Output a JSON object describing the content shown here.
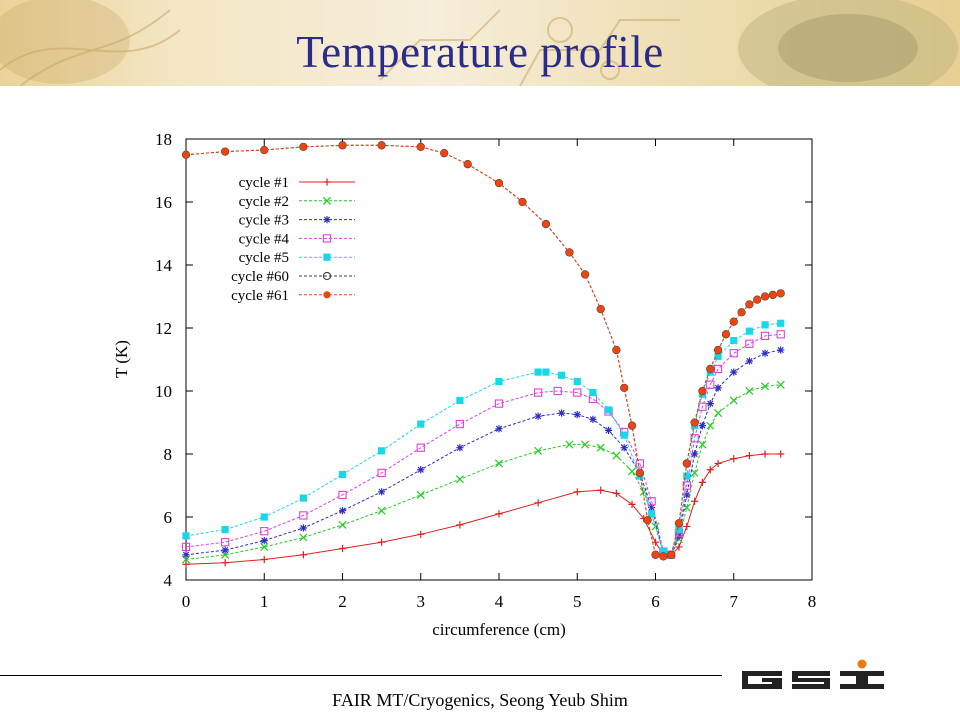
{
  "slide": {
    "title": "Temperature profile",
    "footer": "FAIR MT/Cryogenics,   Seong Yeub Shim",
    "logo_text": "GSI",
    "logo_color": "#222222",
    "logo_accent": "#e87a10"
  },
  "chart_data": {
    "type": "line",
    "title": "",
    "xlabel": "circumference (cm)",
    "ylabel": "T (K)",
    "xlim": [
      0,
      8
    ],
    "ylim": [
      4,
      18
    ],
    "xticks": [
      0,
      1,
      2,
      3,
      4,
      5,
      6,
      7,
      8
    ],
    "yticks": [
      4,
      6,
      8,
      10,
      12,
      14,
      16,
      18
    ],
    "grid": false,
    "legend_position": "top-left",
    "series": [
      {
        "name": "cycle #1",
        "color": "#e02020",
        "marker": "plus",
        "x": [
          0,
          0.5,
          1,
          1.5,
          2,
          2.5,
          3,
          3.5,
          4,
          4.5,
          5,
          5.3,
          5.5,
          5.7,
          5.85,
          6.0,
          6.1,
          6.2,
          6.3,
          6.4,
          6.5,
          6.6,
          6.7,
          6.8,
          7.0,
          7.2,
          7.4,
          7.6
        ],
        "y": [
          4.5,
          4.55,
          4.65,
          4.8,
          5.0,
          5.2,
          5.45,
          5.75,
          6.1,
          6.45,
          6.8,
          6.85,
          6.75,
          6.4,
          5.95,
          5.2,
          4.8,
          4.8,
          5.05,
          5.7,
          6.5,
          7.1,
          7.5,
          7.7,
          7.85,
          7.95,
          8.0,
          8.0
        ]
      },
      {
        "name": "cycle #2",
        "color": "#22cc22",
        "marker": "x",
        "x": [
          0,
          0.5,
          1,
          1.5,
          2,
          2.5,
          3,
          3.5,
          4,
          4.5,
          4.9,
          5.1,
          5.3,
          5.5,
          5.7,
          5.85,
          6.0,
          6.1,
          6.2,
          6.3,
          6.4,
          6.5,
          6.6,
          6.7,
          6.8,
          7.0,
          7.2,
          7.4,
          7.6
        ],
        "y": [
          4.65,
          4.8,
          5.05,
          5.35,
          5.75,
          6.2,
          6.7,
          7.2,
          7.7,
          8.1,
          8.3,
          8.3,
          8.2,
          7.95,
          7.45,
          6.8,
          5.7,
          4.85,
          4.8,
          5.3,
          6.3,
          7.4,
          8.3,
          8.9,
          9.3,
          9.7,
          10.0,
          10.15,
          10.2
        ]
      },
      {
        "name": "cycle #3",
        "color": "#2d2dc8",
        "marker": "star",
        "x": [
          0,
          0.5,
          1,
          1.5,
          2,
          2.5,
          3,
          3.5,
          4,
          4.5,
          4.8,
          5.0,
          5.2,
          5.4,
          5.6,
          5.8,
          5.95,
          6.1,
          6.2,
          6.3,
          6.4,
          6.5,
          6.6,
          6.7,
          6.8,
          7.0,
          7.2,
          7.4,
          7.6
        ],
        "y": [
          4.8,
          4.95,
          5.25,
          5.65,
          6.2,
          6.8,
          7.5,
          8.2,
          8.8,
          9.2,
          9.3,
          9.25,
          9.1,
          8.75,
          8.2,
          7.4,
          6.3,
          4.9,
          4.8,
          5.4,
          6.7,
          8.0,
          8.9,
          9.6,
          10.1,
          10.6,
          10.95,
          11.2,
          11.3
        ]
      },
      {
        "name": "cycle #4",
        "color": "#e040e0",
        "marker": "square-open",
        "x": [
          0,
          0.5,
          1,
          1.5,
          2,
          2.5,
          3,
          3.5,
          4,
          4.5,
          4.75,
          5.0,
          5.2,
          5.4,
          5.6,
          5.8,
          5.95,
          6.1,
          6.2,
          6.3,
          6.4,
          6.5,
          6.6,
          6.7,
          6.8,
          7.0,
          7.2,
          7.4,
          7.6
        ],
        "y": [
          5.05,
          5.2,
          5.55,
          6.05,
          6.7,
          7.4,
          8.2,
          8.95,
          9.6,
          9.95,
          10.0,
          9.95,
          9.75,
          9.35,
          8.7,
          7.7,
          6.5,
          4.9,
          4.8,
          5.5,
          7.0,
          8.5,
          9.5,
          10.2,
          10.7,
          11.2,
          11.5,
          11.75,
          11.8
        ]
      },
      {
        "name": "cycle #5",
        "color": "#18d8e8",
        "marker": "square-filled",
        "x": [
          0,
          0.5,
          1,
          1.5,
          2,
          2.5,
          3,
          3.5,
          4,
          4.5,
          4.6,
          4.8,
          5.0,
          5.2,
          5.4,
          5.6,
          5.8,
          5.95,
          6.1,
          6.2,
          6.3,
          6.4,
          6.5,
          6.6,
          6.7,
          6.8,
          7.0,
          7.2,
          7.4,
          7.6
        ],
        "y": [
          5.4,
          5.6,
          6.0,
          6.6,
          7.35,
          8.1,
          8.95,
          9.7,
          10.3,
          10.6,
          10.6,
          10.5,
          10.3,
          9.95,
          9.4,
          8.6,
          7.3,
          6.1,
          4.9,
          4.8,
          5.6,
          7.3,
          8.9,
          9.9,
          10.6,
          11.1,
          11.6,
          11.9,
          12.1,
          12.15
        ]
      },
      {
        "name": "cycle #60",
        "color": "#404040",
        "marker": "circle-open",
        "x": [
          0,
          0.5,
          1,
          1.5,
          2,
          2.5,
          3,
          3.3,
          3.6,
          4.0,
          4.3,
          4.6,
          4.9,
          5.1,
          5.3,
          5.5,
          5.6,
          5.7,
          5.8,
          5.9,
          6.0,
          6.1,
          6.2,
          6.3,
          6.4,
          6.5,
          6.6,
          6.7,
          6.8,
          6.9,
          7.0,
          7.1,
          7.2,
          7.3,
          7.4,
          7.5,
          7.6
        ],
        "y": [
          17.5,
          17.6,
          17.65,
          17.75,
          17.8,
          17.8,
          17.75,
          17.55,
          17.2,
          16.6,
          16.0,
          15.3,
          14.4,
          13.7,
          12.6,
          11.3,
          10.1,
          8.9,
          7.4,
          5.9,
          4.8,
          4.75,
          4.8,
          5.8,
          7.7,
          9.0,
          10.0,
          10.7,
          11.3,
          11.8,
          12.2,
          12.5,
          12.75,
          12.9,
          13.0,
          13.05,
          13.1
        ]
      },
      {
        "name": "cycle #61",
        "color": "#ee4510",
        "marker": "circle-filled",
        "x": [
          0,
          0.5,
          1,
          1.5,
          2,
          2.5,
          3,
          3.3,
          3.6,
          4.0,
          4.3,
          4.6,
          4.9,
          5.1,
          5.3,
          5.5,
          5.6,
          5.7,
          5.8,
          5.9,
          6.0,
          6.1,
          6.2,
          6.3,
          6.4,
          6.5,
          6.6,
          6.7,
          6.8,
          6.9,
          7.0,
          7.1,
          7.2,
          7.3,
          7.4,
          7.5,
          7.6
        ],
        "y": [
          17.5,
          17.6,
          17.65,
          17.75,
          17.8,
          17.8,
          17.75,
          17.55,
          17.2,
          16.6,
          16.0,
          15.3,
          14.4,
          13.7,
          12.6,
          11.3,
          10.1,
          8.9,
          7.4,
          5.9,
          4.8,
          4.75,
          4.8,
          5.8,
          7.7,
          9.0,
          10.0,
          10.7,
          11.3,
          11.8,
          12.2,
          12.5,
          12.75,
          12.9,
          13.0,
          13.05,
          13.1
        ]
      }
    ]
  }
}
